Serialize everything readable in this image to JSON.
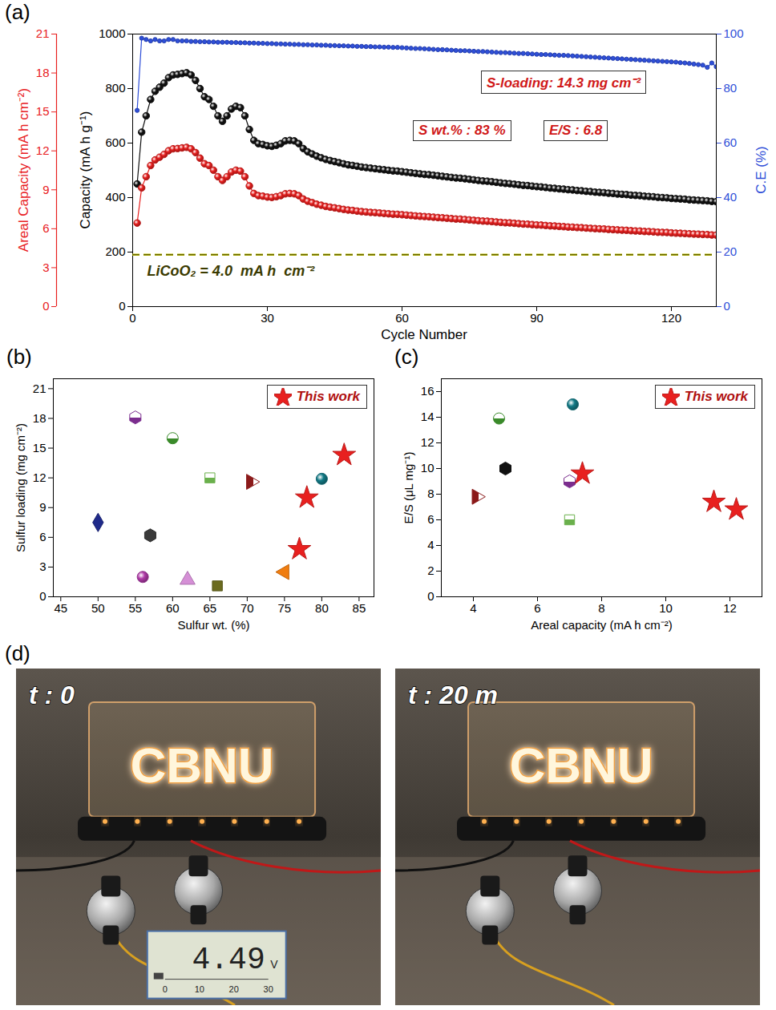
{
  "chart_data": [
    {
      "panel": "(a)",
      "type": "line",
      "x_label": "Cycle Number",
      "xlim": [
        0,
        130
      ],
      "xticks": [
        0,
        30,
        60,
        90,
        120
      ],
      "y_label": "Capacity (mA h g⁻¹)",
      "ylim": [
        0,
        1000
      ],
      "yticks": [
        0,
        200,
        400,
        600,
        800,
        1000
      ],
      "y2_label": "C.E (%)",
      "y2lim": [
        0,
        100
      ],
      "y2ticks": [
        0,
        20,
        40,
        60,
        80,
        100
      ],
      "y3_label": "Areal Capacity (mA h cm⁻²)",
      "y3lim": [
        0,
        21
      ],
      "y3ticks": [
        0,
        3,
        6,
        9,
        12,
        15,
        18,
        21
      ],
      "x": [
        1,
        2,
        3,
        4,
        5,
        6,
        7,
        8,
        9,
        10,
        11,
        12,
        13,
        14,
        15,
        16,
        17,
        18,
        19,
        20,
        21,
        22,
        23,
        24,
        25,
        26,
        27,
        28,
        29,
        30,
        31,
        32,
        33,
        34,
        35,
        36,
        37,
        38,
        39,
        40,
        41,
        42,
        43,
        44,
        45,
        46,
        47,
        48,
        49,
        50,
        51,
        52,
        53,
        54,
        55,
        56,
        57,
        58,
        59,
        60,
        61,
        62,
        63,
        64,
        65,
        66,
        67,
        68,
        69,
        70,
        71,
        72,
        73,
        74,
        75,
        76,
        77,
        78,
        79,
        80,
        81,
        82,
        83,
        84,
        85,
        86,
        87,
        88,
        89,
        90,
        91,
        92,
        93,
        94,
        95,
        96,
        97,
        98,
        99,
        100,
        101,
        102,
        103,
        104,
        105,
        106,
        107,
        108,
        109,
        110,
        111,
        112,
        113,
        114,
        115,
        116,
        117,
        118,
        119,
        120,
        121,
        122,
        123,
        124,
        125,
        126,
        127,
        128,
        129,
        130
      ],
      "series": [
        {
          "color": "#111111",
          "marker": "sphere",
          "values": [
            450,
            640,
            700,
            760,
            790,
            805,
            820,
            840,
            850,
            852,
            855,
            858,
            850,
            830,
            800,
            770,
            760,
            735,
            700,
            680,
            700,
            725,
            735,
            730,
            700,
            650,
            610,
            598,
            595,
            590,
            588,
            592,
            598,
            608,
            610,
            608,
            598,
            580,
            568,
            560,
            552,
            546,
            540,
            536,
            532,
            528,
            524,
            520,
            518,
            515,
            512,
            510,
            508,
            506,
            504,
            502,
            500,
            498,
            497,
            495,
            493,
            491,
            489,
            487,
            485,
            484,
            482,
            480,
            478,
            476,
            474,
            472,
            471,
            469,
            467,
            465,
            463,
            461,
            460,
            458,
            456,
            454,
            452,
            451,
            449,
            447,
            445,
            444,
            442,
            440,
            439,
            437,
            435,
            434,
            432,
            431,
            429,
            428,
            426,
            425,
            423,
            422,
            420,
            419,
            418,
            416,
            415,
            413,
            412,
            411,
            409,
            408,
            407,
            405,
            404,
            403,
            401,
            400,
            399,
            397,
            396,
            395,
            394,
            392,
            391,
            390,
            389,
            388,
            386,
            385
          ]
        },
        {
          "color": "#e8201f",
          "marker": "sphere",
          "axis": "y3",
          "values": [
            6.44,
            9.15,
            10.01,
            10.87,
            11.3,
            11.51,
            11.73,
            12.01,
            12.16,
            12.18,
            12.23,
            12.27,
            12.16,
            11.87,
            11.44,
            11.01,
            10.87,
            10.51,
            10.01,
            9.72,
            10.01,
            10.37,
            10.51,
            10.44,
            10.01,
            9.3,
            8.72,
            8.55,
            8.51,
            8.44,
            8.41,
            8.47,
            8.55,
            8.69,
            8.72,
            8.69,
            8.55,
            8.29,
            8.12,
            8.01,
            7.89,
            7.81,
            7.72,
            7.66,
            7.61,
            7.55,
            7.49,
            7.44,
            7.41,
            7.36,
            7.32,
            7.29,
            7.26,
            7.24,
            7.21,
            7.18,
            7.15,
            7.12,
            7.11,
            7.08,
            7.05,
            7.02,
            6.99,
            6.96,
            6.94,
            6.92,
            6.89,
            6.86,
            6.84,
            6.81,
            6.78,
            6.75,
            6.74,
            6.71,
            6.68,
            6.65,
            6.62,
            6.59,
            6.58,
            6.55,
            6.52,
            6.49,
            6.46,
            6.45,
            6.42,
            6.39,
            6.36,
            6.35,
            6.32,
            6.29,
            6.28,
            6.25,
            6.22,
            6.21,
            6.18,
            6.16,
            6.13,
            6.12,
            6.09,
            6.08,
            6.05,
            6.03,
            6.01,
            5.99,
            5.98,
            5.95,
            5.93,
            5.91,
            5.89,
            5.88,
            5.85,
            5.83,
            5.82,
            5.79,
            5.78,
            5.76,
            5.73,
            5.72,
            5.71,
            5.68,
            5.66,
            5.65,
            5.63,
            5.61,
            5.59,
            5.58,
            5.56,
            5.55,
            5.52,
            5.51
          ]
        },
        {
          "color": "#2f4fd8",
          "marker": "circle",
          "axis": "y2",
          "values": [
            72,
            98.5,
            98,
            97.5,
            98,
            97.5,
            97.5,
            98,
            98,
            97.5,
            97.5,
            97.5,
            97.3,
            97.3,
            97.2,
            97.2,
            97.1,
            97.1,
            97,
            97,
            97,
            96.9,
            96.9,
            96.8,
            96.8,
            96.7,
            96.7,
            96.6,
            96.6,
            96.5,
            96.5,
            96.4,
            96.4,
            96.3,
            96.3,
            96.2,
            96.2,
            96.1,
            96.1,
            96,
            96,
            95.9,
            95.9,
            95.8,
            95.8,
            95.7,
            95.7,
            95.6,
            95.6,
            95.5,
            95.5,
            95.4,
            95.4,
            95.3,
            95.3,
            95.2,
            95.2,
            95.1,
            95.1,
            95,
            94.9,
            94.8,
            94.7,
            94.7,
            94.6,
            94.5,
            94.4,
            94.3,
            94.3,
            94.2,
            94.1,
            94,
            93.9,
            93.9,
            93.8,
            93.7,
            93.6,
            93.6,
            93.5,
            93.4,
            93.3,
            93.2,
            93.2,
            93.1,
            93,
            92.9,
            92.9,
            92.8,
            92.7,
            92.6,
            92.5,
            92.5,
            92.4,
            92.3,
            92.2,
            92.2,
            92.1,
            92,
            91.9,
            91.8,
            91.7,
            91.6,
            91.5,
            91.4,
            91.3,
            91.2,
            91.1,
            91,
            90.9,
            90.8,
            90.7,
            90.6,
            90.5,
            90.4,
            90.3,
            90.2,
            90.1,
            90,
            89.9,
            89.8,
            89.7,
            89.5,
            89.4,
            89.2,
            89,
            88.8,
            88.6,
            87.8,
            89.4,
            88
          ]
        }
      ],
      "reference_line": {
        "value": 4.0,
        "label": "LiCoO₂ = 4.0  mA h  cm⁻²",
        "axis": "y3",
        "line_style": "dashed",
        "color": "#b8b800"
      },
      "annotations": [
        "S-loading: 14.3 mg cm⁻²",
        "S wt.% : 83 %",
        "E/S : 6.8"
      ]
    },
    {
      "panel": "(b)",
      "type": "scatter",
      "x_label": "Sulfur wt. (%)",
      "xlim": [
        44,
        87
      ],
      "xticks": [
        45,
        50,
        55,
        60,
        65,
        70,
        75,
        80,
        85
      ],
      "y_label": "Sulfur loading (mg cm⁻²)",
      "ylim": [
        0,
        22
      ],
      "yticks": [
        0,
        3,
        6,
        9,
        12,
        15,
        18,
        21
      ],
      "legend": "top-right",
      "series": [
        {
          "color": "#1f2a8a",
          "marker": "diamond",
          "x": [
            50
          ],
          "values": [
            7.5
          ]
        },
        {
          "color": "#3a3a3a",
          "marker": "hexagon",
          "x": [
            57
          ],
          "values": [
            6.2
          ]
        },
        {
          "color": "#b03aa8",
          "marker": "sphere",
          "x": [
            56
          ],
          "values": [
            2
          ]
        },
        {
          "color": "#d58fd6",
          "marker": "triangle",
          "x": [
            62
          ],
          "values": [
            1.7
          ]
        },
        {
          "color": "#6b6b1f",
          "marker": "square",
          "x": [
            66
          ],
          "values": [
            1.1
          ]
        },
        {
          "color": "#7b2d8e",
          "marker": "half-hexagon",
          "x": [
            55
          ],
          "values": [
            18.1
          ]
        },
        {
          "color": "#3a8a2a",
          "marker": "half-circle",
          "x": [
            60
          ],
          "values": [
            16
          ]
        },
        {
          "color": "#6ab04c",
          "marker": "half-square",
          "x": [
            65
          ],
          "values": [
            12
          ]
        },
        {
          "color": "#8b1a1a",
          "marker": "half-triangle-right",
          "x": [
            70.5
          ],
          "values": [
            11.6
          ]
        },
        {
          "color": "#127a86",
          "marker": "sphere",
          "x": [
            80
          ],
          "values": [
            11.9
          ]
        },
        {
          "color": "#f07d10",
          "marker": "triangle-left",
          "x": [
            75
          ],
          "values": [
            2.5
          ]
        },
        {
          "name": "This work",
          "color": "#e8201f",
          "marker": "star",
          "x": [
            77,
            78,
            83
          ],
          "values": [
            4.8,
            10,
            14.3
          ]
        }
      ]
    },
    {
      "panel": "(c)",
      "type": "scatter",
      "x_label": "Areal capacity (mA h cm⁻²)",
      "xlim": [
        3,
        13
      ],
      "xticks": [
        4,
        6,
        8,
        10,
        12
      ],
      "y_label": "E/S (μL mg⁻¹)",
      "ylim": [
        0,
        17
      ],
      "yticks": [
        0,
        2,
        4,
        6,
        8,
        10,
        12,
        14,
        16
      ],
      "legend": "top-right",
      "series": [
        {
          "color": "#3a8a2a",
          "marker": "half-circle",
          "x": [
            4.8
          ],
          "values": [
            13.9
          ]
        },
        {
          "color": "#127a86",
          "marker": "sphere",
          "x": [
            7.1
          ],
          "values": [
            15
          ]
        },
        {
          "color": "#111111",
          "marker": "hexagon",
          "x": [
            5
          ],
          "values": [
            10
          ]
        },
        {
          "color": "#7b2d8e",
          "marker": "half-hexagon",
          "x": [
            7
          ],
          "values": [
            9
          ]
        },
        {
          "color": "#8b1a1a",
          "marker": "half-triangle-right",
          "x": [
            4.1
          ],
          "values": [
            7.8
          ]
        },
        {
          "color": "#6ab04c",
          "marker": "half-square",
          "x": [
            7
          ],
          "values": [
            6
          ]
        },
        {
          "name": "This work",
          "color": "#e8201f",
          "marker": "star",
          "x": [
            7.4,
            11.5,
            12.2
          ],
          "values": [
            9.6,
            7.4,
            6.8
          ]
        }
      ]
    }
  ],
  "panel_d": {
    "panel": "(d)",
    "photos": [
      {
        "time_label": "t : 0",
        "sign_text": "CBNU",
        "meter": {
          "reading": 4.49,
          "unit": "V",
          "scale": [
            0,
            10,
            20,
            30
          ]
        }
      },
      {
        "time_label": "t : 20 m",
        "sign_text": "CBNU"
      }
    ]
  }
}
